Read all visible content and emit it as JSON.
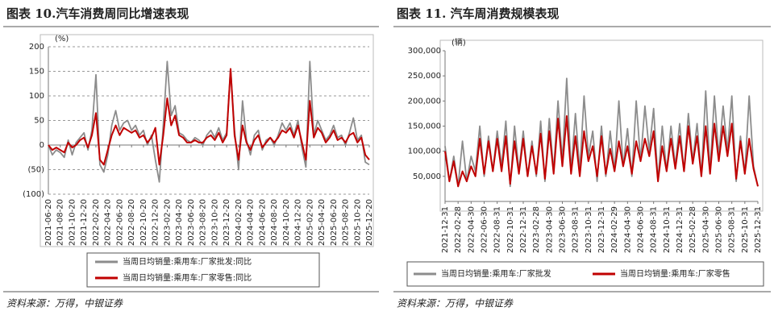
{
  "chart_data": [
    {
      "type": "line",
      "title": "图表 10.汽车消费周同比增速表现",
      "y_label": "(%)",
      "source": "资料来源：万得，中银证券",
      "categories": [
        "2021-06-20",
        null,
        null,
        "2021-08-20",
        null,
        null,
        "2021-10-20",
        null,
        null,
        "2021-12-20",
        null,
        null,
        "2022-02-20",
        null,
        null,
        "2022-04-20",
        null,
        null,
        "2022-06-20",
        null,
        null,
        "2022-08-20",
        null,
        null,
        "2022-10-20",
        null,
        null,
        "2022-12-20",
        null,
        null,
        "2023-02-20",
        null,
        null,
        "2023-04-20",
        null,
        null,
        "2023-06-20",
        null,
        null,
        "2023-08-20",
        null,
        null,
        "2023-10-20",
        null,
        null,
        "2023-12-20",
        null,
        null,
        "2024-02-20",
        null,
        null,
        "2024-04-20",
        null,
        null,
        "2024-06-20",
        null,
        null,
        "2024-08-20",
        null,
        null,
        "2024-10-20",
        null,
        null,
        "2024-12-20",
        null,
        null,
        "2025-02-20",
        null,
        null,
        "2025-04-20",
        null,
        null,
        "2025-06-20",
        null,
        null,
        "2025-08-20",
        null,
        null,
        "2025-10-20",
        null,
        null,
        "2025-12-20"
      ],
      "series": [
        {
          "name": "当周日均销量:乘用车:厂家批发:同比",
          "color": "#8c8c8c",
          "values": [
            0,
            -20,
            -10,
            -15,
            -25,
            10,
            -20,
            5,
            15,
            25,
            -10,
            30,
            143,
            -40,
            -55,
            -20,
            40,
            70,
            30,
            45,
            50,
            30,
            40,
            20,
            30,
            0,
            20,
            -30,
            -75,
            40,
            170,
            60,
            80,
            25,
            20,
            10,
            5,
            15,
            10,
            0,
            20,
            30,
            15,
            35,
            10,
            25,
            155,
            30,
            -50,
            90,
            10,
            -20,
            20,
            30,
            -10,
            10,
            15,
            0,
            20,
            45,
            30,
            45,
            20,
            50,
            -5,
            -45,
            170,
            20,
            50,
            30,
            10,
            20,
            40,
            15,
            20,
            0,
            25,
            55,
            10,
            20,
            -35,
            -40
          ]
        },
        {
          "name": "当周日均销量:乘用车:厂家零售:同比",
          "color": "#c00000",
          "values": [
            0,
            -10,
            -5,
            -10,
            -15,
            5,
            -5,
            0,
            10,
            15,
            -5,
            20,
            65,
            -30,
            -40,
            -10,
            20,
            40,
            20,
            35,
            30,
            25,
            30,
            15,
            20,
            5,
            15,
            35,
            -40,
            20,
            95,
            40,
            60,
            20,
            15,
            5,
            5,
            10,
            5,
            5,
            15,
            20,
            10,
            25,
            5,
            20,
            155,
            20,
            -30,
            40,
            5,
            -10,
            10,
            20,
            -5,
            5,
            15,
            5,
            15,
            30,
            25,
            35,
            15,
            40,
            5,
            -30,
            90,
            15,
            35,
            25,
            5,
            15,
            30,
            10,
            15,
            5,
            20,
            25,
            5,
            15,
            -20,
            -30
          ]
        }
      ],
      "ylim": [
        -100,
        200
      ],
      "yticks": [
        {
          "value": -100,
          "label": "(100)"
        },
        {
          "value": -50,
          "label": "(50)"
        },
        0,
        50,
        100,
        150,
        200
      ],
      "negative_tick_color": "#c00000",
      "grid": true,
      "legend_layout": "column"
    },
    {
      "type": "line",
      "title": "图表 11. 汽车周消费规模表现",
      "y_label": "(辆)",
      "source": "资料来源：万得，中银证券",
      "categories": [
        "2021-12-31",
        null,
        null,
        "2022-02-28",
        null,
        null,
        "2022-04-30",
        null,
        null,
        "2022-06-30",
        null,
        null,
        "2022-08-31",
        null,
        null,
        "2022-10-31",
        null,
        null,
        "2022-12-31",
        null,
        null,
        "2023-02-28",
        null,
        null,
        "2023-04-30",
        null,
        null,
        "2023-06-30",
        null,
        null,
        "2023-08-31",
        null,
        null,
        "2023-10-31",
        null,
        null,
        "2023-12-31",
        null,
        null,
        "2024-02-29",
        null,
        null,
        "2024-04-30",
        null,
        null,
        "2024-06-30",
        null,
        null,
        "2024-08-31",
        null,
        null,
        "2024-10-31",
        null,
        null,
        "2024-12-31",
        null,
        null,
        "2025-02-28",
        null,
        null,
        "2025-04-30",
        null,
        null,
        "2025-06-30",
        null,
        null,
        "2025-08-31",
        null,
        null,
        "2025-10-31",
        null,
        null,
        "2025-12-31"
      ],
      "series": [
        {
          "name": "当周日均销量:乘用车:厂家批发",
          "color": "#8c8c8c",
          "values": [
            110000,
            40000,
            90000,
            30000,
            120000,
            40000,
            90000,
            60000,
            150000,
            50000,
            130000,
            60000,
            140000,
            70000,
            160000,
            30000,
            150000,
            60000,
            140000,
            50000,
            120000,
            50000,
            160000,
            40000,
            165000,
            60000,
            200000,
            80000,
            245000,
            60000,
            175000,
            60000,
            210000,
            90000,
            140000,
            40000,
            150000,
            50000,
            140000,
            60000,
            200000,
            70000,
            145000,
            50000,
            200000,
            80000,
            190000,
            100000,
            185000,
            40000,
            150000,
            60000,
            150000,
            70000,
            155000,
            60000,
            175000,
            80000,
            155000,
            50000,
            220000,
            60000,
            210000,
            90000,
            190000,
            100000,
            210000,
            40000,
            130000,
            55000,
            210000,
            70000,
            30000
          ]
        },
        {
          "name": "当周日均销量:乘用车:厂家零售",
          "color": "#c00000",
          "values": [
            100000,
            40000,
            80000,
            30000,
            60000,
            40000,
            70000,
            50000,
            125000,
            55000,
            120000,
            60000,
            125000,
            60000,
            130000,
            35000,
            120000,
            55000,
            125000,
            50000,
            110000,
            55000,
            135000,
            45000,
            140000,
            55000,
            165000,
            70000,
            170000,
            55000,
            130000,
            50000,
            140000,
            80000,
            110000,
            50000,
            130000,
            55000,
            105000,
            60000,
            120000,
            70000,
            110000,
            55000,
            120000,
            80000,
            125000,
            90000,
            140000,
            40000,
            110000,
            60000,
            125000,
            65000,
            130000,
            60000,
            150000,
            75000,
            130000,
            50000,
            150000,
            55000,
            155000,
            80000,
            150000,
            90000,
            155000,
            45000,
            120000,
            55000,
            125000,
            65000,
            30000
          ]
        }
      ],
      "ylim": [
        0,
        300000
      ],
      "yticks": [
        {
          "value": 50000,
          "label": "50,000"
        },
        {
          "value": 100000,
          "label": "100,000"
        },
        {
          "value": 150000,
          "label": "150,000"
        },
        {
          "value": 200000,
          "label": "200,000"
        },
        {
          "value": 250000,
          "label": "250,000"
        },
        {
          "value": 300000,
          "label": "300,000"
        }
      ],
      "grid": false,
      "legend_layout": "row"
    }
  ]
}
